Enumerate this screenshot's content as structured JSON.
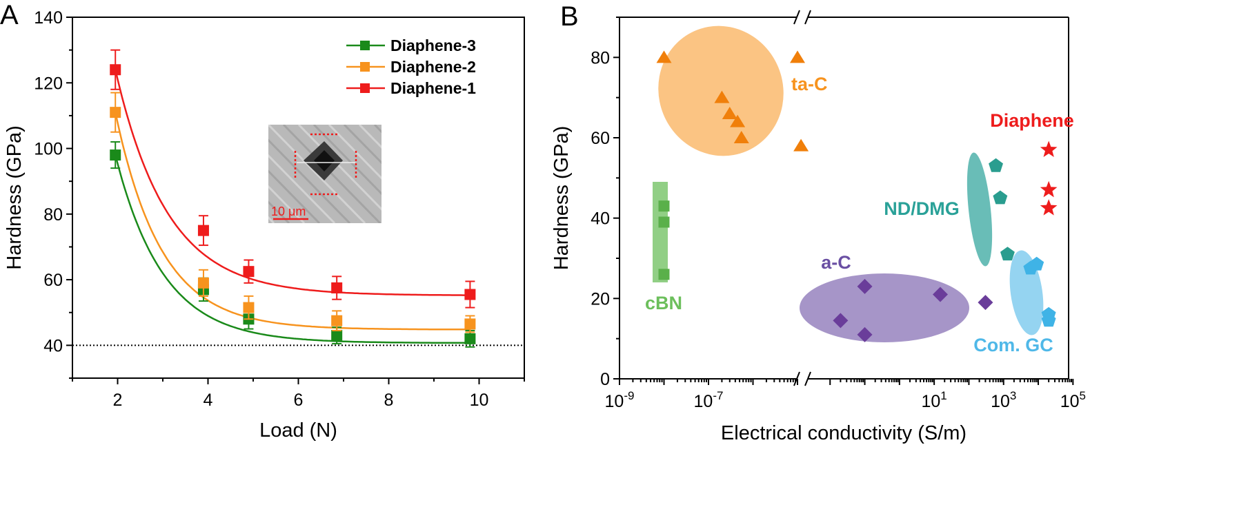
{
  "chart_data": [
    {
      "panel": "A",
      "type": "line",
      "xlabel": "Load (N)",
      "ylabel": "Hardness (GPa)",
      "xlim": [
        1,
        11
      ],
      "ylim": [
        30,
        140
      ],
      "xticks": [
        2,
        4,
        6,
        8,
        10
      ],
      "yticks": [
        40,
        60,
        80,
        100,
        120,
        140
      ],
      "x": [
        1.95,
        3.9,
        4.9,
        6.85,
        9.8
      ],
      "reference_line": {
        "y": 40,
        "style": "dotted"
      },
      "legend_position": "top-right",
      "series": [
        {
          "name": "Diaphene-3",
          "color": "#1a8a1a",
          "values": [
            98,
            57,
            48,
            43,
            42
          ],
          "errors": [
            4,
            3.5,
            3,
            2.5,
            2.5
          ],
          "fit_asymptote": 40.7,
          "fit_decay": 1.06
        },
        {
          "name": "Diaphene-2",
          "color": "#f7931e",
          "values": [
            111,
            59,
            51.5,
            47.5,
            46.5
          ],
          "errors": [
            6,
            4,
            3.5,
            3,
            2.5
          ],
          "fit_asymptote": 44.8,
          "fit_decay": 1.02
        },
        {
          "name": "Diaphene-1",
          "color": "#ee1c1c",
          "values": [
            124,
            75,
            62.5,
            57.5,
            55.5
          ],
          "errors": [
            6,
            4.5,
            3.5,
            3.5,
            4
          ],
          "fit_asymptote": 55.2,
          "fit_decay": 1.15
        }
      ],
      "inset": {
        "scale_bar_label": "10 μm",
        "description_color": "#ee1c1c"
      }
    },
    {
      "panel": "B",
      "type": "scatter",
      "xlabel": "Electrical conductivity (S/m)",
      "ylabel": "Hardness (GPa)",
      "x_scale": "log (broken axis)",
      "ylim": [
        0,
        90
      ],
      "yticks": [
        0,
        20,
        40,
        60,
        80
      ],
      "xticks": [
        {
          "base": "10",
          "exp": "-9"
        },
        {
          "base": "10",
          "exp": "-7"
        },
        {
          "base": "10",
          "exp": "1"
        },
        {
          "base": "10",
          "exp": "3"
        },
        {
          "base": "10",
          "exp": "5"
        }
      ],
      "axis_break_symbol": "//",
      "groups": [
        {
          "name": "ta-C",
          "color": "#f7931e",
          "marker": "triangle",
          "points": [
            [
              1e-08,
              80
            ],
            [
              1e-05,
              80
            ],
            [
              2e-07,
              70
            ],
            [
              3e-07,
              66
            ],
            [
              4.5e-07,
              64
            ],
            [
              5.5e-07,
              60
            ],
            [
              1.2e-05,
              58
            ]
          ]
        },
        {
          "name": "cBN",
          "color": "#6cbf5c",
          "marker": "square",
          "points": [
            [
              1e-08,
              43
            ],
            [
              1e-08,
              39
            ],
            [
              1e-08,
              26
            ]
          ]
        },
        {
          "name": "a-C",
          "color": "#6a4fa3",
          "marker": "diamond",
          "points": [
            [
              0.02,
              14.5
            ],
            [
              0.1,
              11
            ],
            [
              0.1,
              23
            ],
            [
              15,
              21
            ],
            [
              300,
              19
            ]
          ]
        },
        {
          "name": "ND/DMG",
          "color": "#2aa198",
          "marker": "pentagon",
          "points": [
            [
              600,
              53
            ],
            [
              800,
              45
            ],
            [
              1300,
              31
            ]
          ]
        },
        {
          "name": "Com. GC",
          "color": "#4fb8e8",
          "marker": "pentagon",
          "points": [
            [
              6000,
              27.5
            ],
            [
              9000,
              28.5
            ],
            [
              20000,
              16
            ],
            [
              20000,
              14.5
            ]
          ]
        },
        {
          "name": "Diaphene",
          "color": "#ee1c1c",
          "marker": "star",
          "points": [
            [
              20000,
              57
            ],
            [
              20000,
              47
            ],
            [
              20000,
              42.5
            ]
          ]
        }
      ]
    }
  ]
}
